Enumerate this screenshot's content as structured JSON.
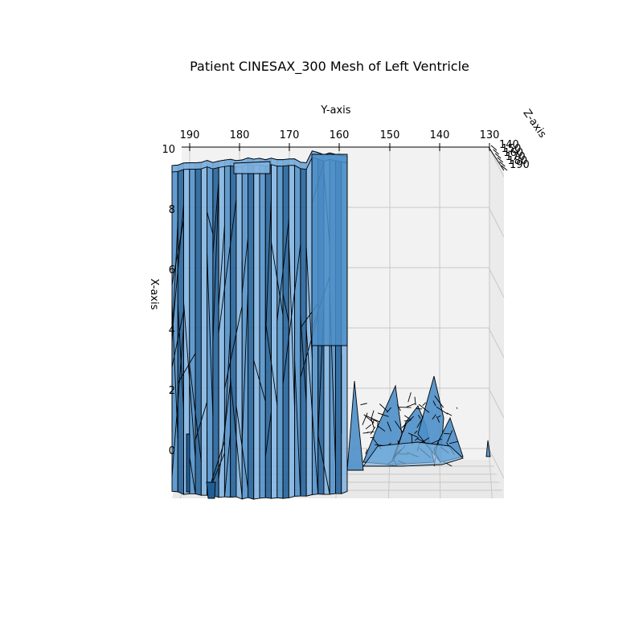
{
  "chart_data": {
    "type": "surface3d",
    "title": "Patient CINESAX_300 Mesh of Left Ventricle",
    "xlabel": "X-axis",
    "ylabel": "Y-axis",
    "zlabel": "Z-axis",
    "y_ticks": [
      "190",
      "180",
      "170",
      "160",
      "150",
      "140",
      "130"
    ],
    "x_ticks": [
      "10",
      "8",
      "6",
      "4",
      "2",
      "0"
    ],
    "z_ticks": [
      "140",
      "150",
      "160",
      "170",
      "180",
      "190"
    ],
    "ylim": [
      193,
      130
    ],
    "xlim": [
      -1.5,
      10
    ],
    "zlim": [
      140,
      190
    ],
    "grid": true,
    "colors": {
      "face": "#4d8fc9",
      "face_dark": "#1f5f99",
      "face_light": "#7fb3e0",
      "edge": "#000000",
      "pane": "#f2f2f2",
      "grid": "#c8c8c8"
    }
  }
}
